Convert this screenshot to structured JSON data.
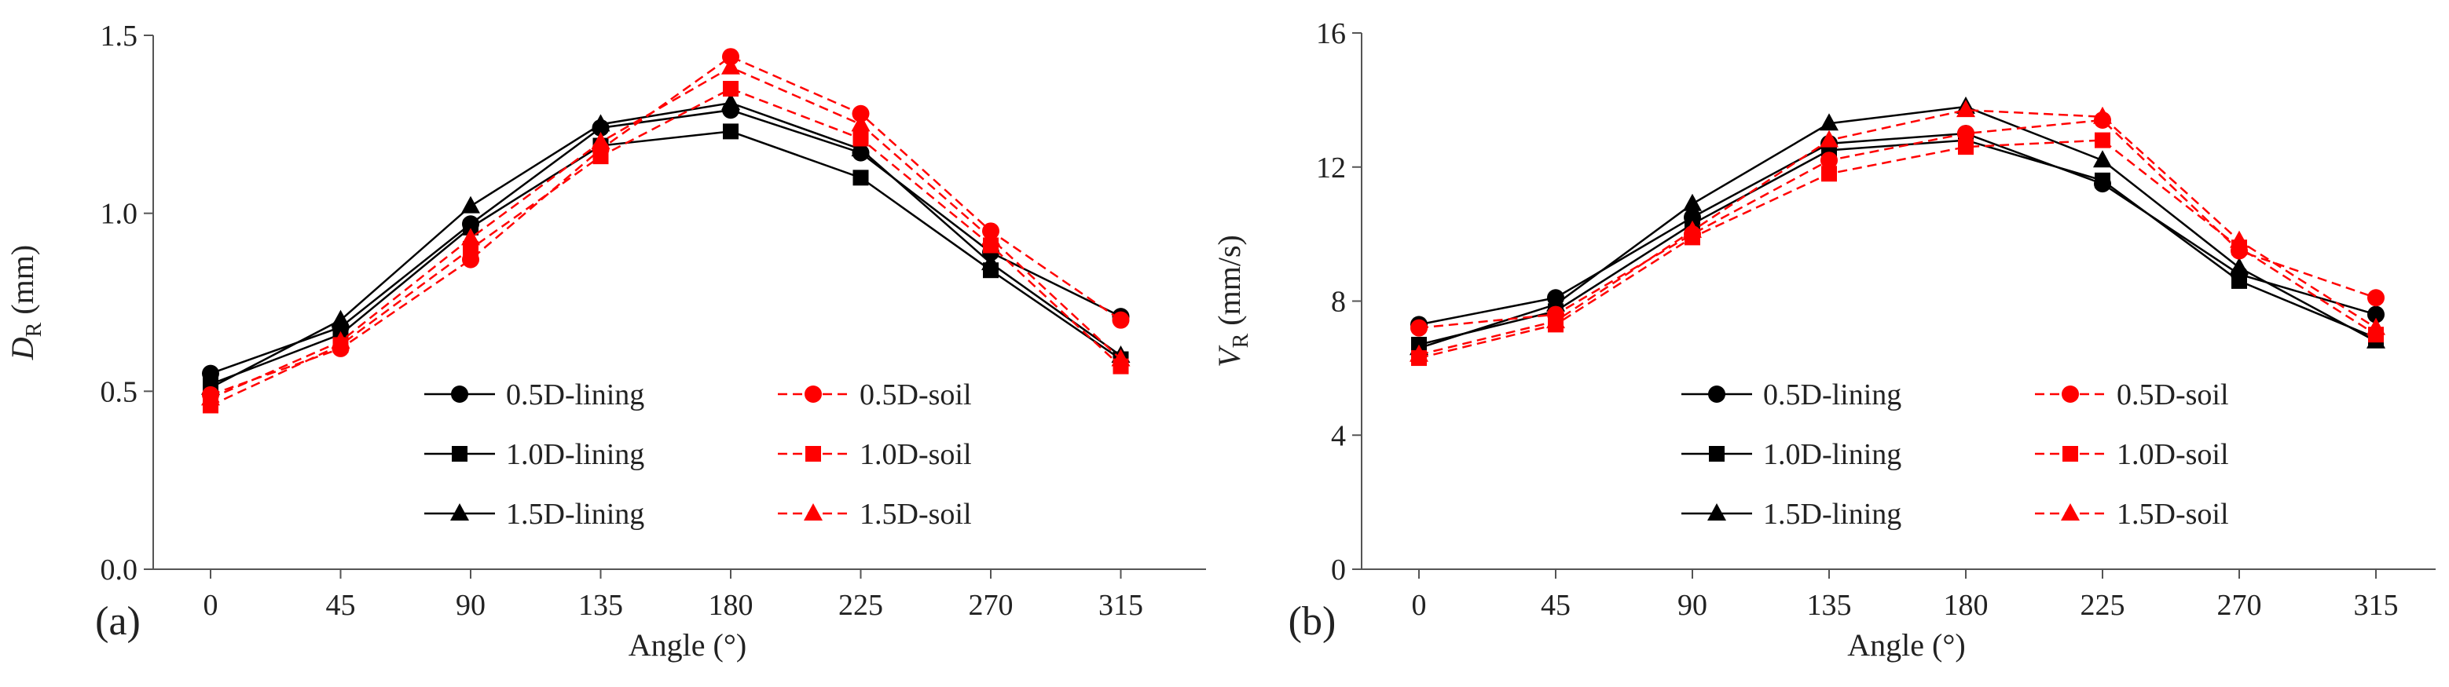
{
  "chart_data": [
    {
      "type": "line",
      "panel_label": "(a)",
      "xlabel": "Angle (°)",
      "ylabel_main": "D",
      "ylabel_sub": "R",
      "ylabel_unit": " (mm)",
      "x": [
        0,
        45,
        90,
        135,
        180,
        225,
        270,
        315
      ],
      "x_tick_labels": [
        "0",
        "45",
        "90",
        "135",
        "180",
        "225",
        "270",
        "315"
      ],
      "ylim": [
        0,
        1.5
      ],
      "y_ticks": [
        0.0,
        0.5,
        1.0,
        1.5
      ],
      "y_tick_labels": [
        "0.0",
        "0.5",
        "1.0",
        "1.5"
      ],
      "legend_position": "bottom-center",
      "series": [
        {
          "name": "0.5D-lining",
          "color": "#000000",
          "dash": "solid",
          "marker": "circle",
          "values": [
            0.55,
            0.68,
            0.97,
            1.24,
            1.29,
            1.17,
            0.89,
            0.71
          ]
        },
        {
          "name": "1.0D-lining",
          "color": "#000000",
          "dash": "solid",
          "marker": "square",
          "values": [
            0.52,
            0.66,
            0.96,
            1.19,
            1.23,
            1.1,
            0.84,
            0.59
          ]
        },
        {
          "name": "1.5D-lining",
          "color": "#000000",
          "dash": "solid",
          "marker": "triangle",
          "values": [
            0.51,
            0.7,
            1.02,
            1.25,
            1.31,
            1.18,
            0.86,
            0.6
          ]
        },
        {
          "name": "0.5D-soil",
          "color": "#ff0000",
          "dash": "dashed",
          "marker": "circle",
          "values": [
            0.49,
            0.62,
            0.87,
            1.18,
            1.44,
            1.28,
            0.95,
            0.7
          ]
        },
        {
          "name": "1.0D-soil",
          "color": "#ff0000",
          "dash": "dashed",
          "marker": "square",
          "values": [
            0.46,
            0.63,
            0.9,
            1.16,
            1.35,
            1.21,
            0.91,
            0.57
          ]
        },
        {
          "name": "1.5D-soil",
          "color": "#ff0000",
          "dash": "dashed",
          "marker": "triangle",
          "values": [
            0.48,
            0.64,
            0.93,
            1.2,
            1.41,
            1.25,
            0.93,
            0.59
          ]
        }
      ]
    },
    {
      "type": "line",
      "panel_label": "(b)",
      "xlabel": "Angle (°)",
      "ylabel_main": "V",
      "ylabel_sub": "R",
      "ylabel_unit": " (mm/s)",
      "x": [
        0,
        45,
        90,
        135,
        180,
        225,
        270,
        315
      ],
      "x_tick_labels": [
        "0",
        "45",
        "90",
        "135",
        "180",
        "225",
        "270",
        "315"
      ],
      "ylim": [
        0,
        16
      ],
      "y_ticks": [
        0,
        4,
        8,
        12,
        16
      ],
      "y_tick_labels": [
        "0",
        "4",
        "8",
        "12",
        "16"
      ],
      "legend_position": "bottom-center",
      "series": [
        {
          "name": "0.5D-lining",
          "color": "#000000",
          "dash": "solid",
          "marker": "circle",
          "values": [
            7.3,
            8.1,
            10.5,
            12.7,
            13.0,
            11.5,
            8.8,
            7.6
          ]
        },
        {
          "name": "1.0D-lining",
          "color": "#000000",
          "dash": "solid",
          "marker": "square",
          "values": [
            6.7,
            7.7,
            10.3,
            12.5,
            12.8,
            11.6,
            8.6,
            6.9
          ]
        },
        {
          "name": "1.5D-lining",
          "color": "#000000",
          "dash": "solid",
          "marker": "triangle",
          "values": [
            6.6,
            7.9,
            10.9,
            13.3,
            13.8,
            12.2,
            9.0,
            6.8
          ]
        },
        {
          "name": "0.5D-soil",
          "color": "#ff0000",
          "dash": "dashed",
          "marker": "circle",
          "values": [
            7.2,
            7.6,
            10.0,
            12.2,
            13.0,
            13.4,
            9.5,
            8.1
          ]
        },
        {
          "name": "1.0D-soil",
          "color": "#ff0000",
          "dash": "dashed",
          "marker": "square",
          "values": [
            6.3,
            7.3,
            9.9,
            11.8,
            12.6,
            12.8,
            9.6,
            7.0
          ]
        },
        {
          "name": "1.5D-soil",
          "color": "#ff0000",
          "dash": "dashed",
          "marker": "triangle",
          "values": [
            6.4,
            7.4,
            10.1,
            12.8,
            13.7,
            13.5,
            9.8,
            7.2
          ]
        }
      ]
    }
  ]
}
